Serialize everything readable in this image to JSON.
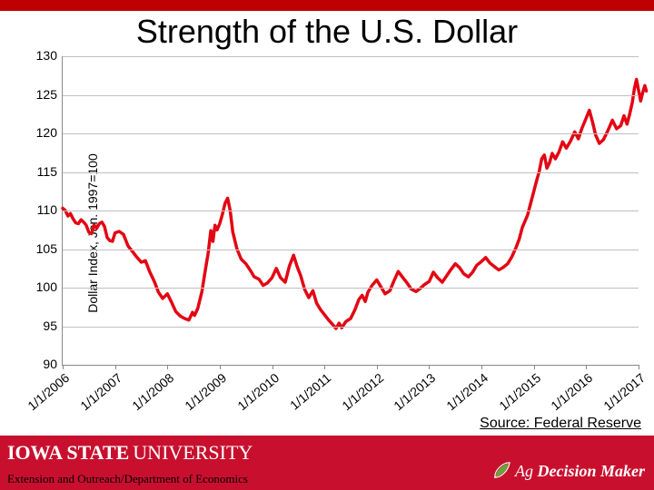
{
  "colors": {
    "accent_red": "#c00000",
    "bottom_bar": "#c8102e",
    "line_color": "#e30613",
    "grid_color": "#bfbfbf",
    "axis_color": "#808080",
    "title_color": "#000000",
    "isu_text": "#ffffff",
    "adm_icon_green": "#6aa339"
  },
  "title": "Strength of the U.S. Dollar",
  "chart": {
    "type": "line",
    "y_axis_title": "Dollar Index, Jan. 1997=100",
    "ylim": [
      90,
      130
    ],
    "ytick_step": 5,
    "y_ticks": [
      90,
      95,
      100,
      105,
      110,
      115,
      120,
      125,
      130
    ],
    "x_labels": [
      "1/1/2006",
      "1/1/2007",
      "1/1/2008",
      "1/1/2009",
      "1/1/2010",
      "1/1/2011",
      "1/1/2012",
      "1/1/2013",
      "1/1/2014",
      "1/1/2015",
      "1/1/2016",
      "1/1/2017"
    ],
    "x_label_rotation": -40,
    "line_width": 3.5,
    "label_fontsize": 14,
    "series": [
      {
        "x": 0.0,
        "y": 110.3
      },
      {
        "x": 0.05,
        "y": 110.0
      },
      {
        "x": 0.1,
        "y": 109.3
      },
      {
        "x": 0.15,
        "y": 109.6
      },
      {
        "x": 0.2,
        "y": 108.9
      },
      {
        "x": 0.25,
        "y": 108.4
      },
      {
        "x": 0.3,
        "y": 108.3
      },
      {
        "x": 0.35,
        "y": 108.8
      },
      {
        "x": 0.4,
        "y": 108.5
      },
      {
        "x": 0.45,
        "y": 108.1
      },
      {
        "x": 0.5,
        "y": 107.2
      },
      {
        "x": 0.55,
        "y": 107.0
      },
      {
        "x": 0.6,
        "y": 108.1
      },
      {
        "x": 0.65,
        "y": 107.7
      },
      {
        "x": 0.7,
        "y": 108.3
      },
      {
        "x": 0.75,
        "y": 108.5
      },
      {
        "x": 0.8,
        "y": 107.9
      },
      {
        "x": 0.85,
        "y": 106.5
      },
      {
        "x": 0.9,
        "y": 106.1
      },
      {
        "x": 0.95,
        "y": 106.0
      },
      {
        "x": 1.0,
        "y": 107.1
      },
      {
        "x": 1.08,
        "y": 107.3
      },
      {
        "x": 1.16,
        "y": 106.9
      },
      {
        "x": 1.25,
        "y": 105.4
      },
      {
        "x": 1.33,
        "y": 104.7
      },
      {
        "x": 1.41,
        "y": 104.0
      },
      {
        "x": 1.5,
        "y": 103.3
      },
      {
        "x": 1.58,
        "y": 103.5
      },
      {
        "x": 1.66,
        "y": 102.1
      },
      {
        "x": 1.75,
        "y": 100.8
      },
      {
        "x": 1.83,
        "y": 99.4
      },
      {
        "x": 1.91,
        "y": 98.6
      },
      {
        "x": 2.0,
        "y": 99.2
      },
      {
        "x": 2.08,
        "y": 98.1
      },
      {
        "x": 2.16,
        "y": 96.9
      },
      {
        "x": 2.25,
        "y": 96.3
      },
      {
        "x": 2.33,
        "y": 96.0
      },
      {
        "x": 2.41,
        "y": 95.8
      },
      {
        "x": 2.48,
        "y": 96.8
      },
      {
        "x": 2.52,
        "y": 96.4
      },
      {
        "x": 2.58,
        "y": 97.3
      },
      {
        "x": 2.66,
        "y": 99.5
      },
      {
        "x": 2.72,
        "y": 102.1
      },
      {
        "x": 2.78,
        "y": 104.5
      },
      {
        "x": 2.83,
        "y": 107.4
      },
      {
        "x": 2.87,
        "y": 106.0
      },
      {
        "x": 2.91,
        "y": 108.1
      },
      {
        "x": 2.95,
        "y": 107.5
      },
      {
        "x": 3.0,
        "y": 108.3
      },
      {
        "x": 3.05,
        "y": 109.5
      },
      {
        "x": 3.1,
        "y": 110.9
      },
      {
        "x": 3.15,
        "y": 111.6
      },
      {
        "x": 3.2,
        "y": 110.0
      },
      {
        "x": 3.25,
        "y": 107.2
      },
      {
        "x": 3.33,
        "y": 105.0
      },
      {
        "x": 3.41,
        "y": 103.7
      },
      {
        "x": 3.5,
        "y": 103.1
      },
      {
        "x": 3.58,
        "y": 102.3
      },
      {
        "x": 3.66,
        "y": 101.4
      },
      {
        "x": 3.75,
        "y": 101.1
      },
      {
        "x": 3.83,
        "y": 100.3
      },
      {
        "x": 3.91,
        "y": 100.6
      },
      {
        "x": 4.0,
        "y": 101.3
      },
      {
        "x": 4.08,
        "y": 102.5
      },
      {
        "x": 4.16,
        "y": 101.3
      },
      {
        "x": 4.25,
        "y": 100.7
      },
      {
        "x": 4.33,
        "y": 102.8
      },
      {
        "x": 4.41,
        "y": 104.2
      },
      {
        "x": 4.48,
        "y": 102.7
      },
      {
        "x": 4.55,
        "y": 101.5
      },
      {
        "x": 4.62,
        "y": 99.8
      },
      {
        "x": 4.7,
        "y": 98.7
      },
      {
        "x": 4.78,
        "y": 99.6
      },
      {
        "x": 4.85,
        "y": 98.0
      },
      {
        "x": 4.92,
        "y": 97.2
      },
      {
        "x": 5.0,
        "y": 96.5
      },
      {
        "x": 5.08,
        "y": 95.8
      },
      {
        "x": 5.16,
        "y": 95.2
      },
      {
        "x": 5.22,
        "y": 94.7
      },
      {
        "x": 5.28,
        "y": 95.4
      },
      {
        "x": 5.33,
        "y": 94.8
      },
      {
        "x": 5.41,
        "y": 95.6
      },
      {
        "x": 5.5,
        "y": 96.0
      },
      {
        "x": 5.58,
        "y": 97.1
      },
      {
        "x": 5.66,
        "y": 98.5
      },
      {
        "x": 5.72,
        "y": 99.0
      },
      {
        "x": 5.78,
        "y": 98.2
      },
      {
        "x": 5.83,
        "y": 99.4
      },
      {
        "x": 5.91,
        "y": 100.3
      },
      {
        "x": 6.0,
        "y": 101.0
      },
      {
        "x": 6.08,
        "y": 100.1
      },
      {
        "x": 6.16,
        "y": 99.2
      },
      {
        "x": 6.25,
        "y": 99.6
      },
      {
        "x": 6.33,
        "y": 100.9
      },
      {
        "x": 6.41,
        "y": 102.1
      },
      {
        "x": 6.5,
        "y": 101.3
      },
      {
        "x": 6.58,
        "y": 100.6
      },
      {
        "x": 6.66,
        "y": 99.8
      },
      {
        "x": 6.75,
        "y": 99.5
      },
      {
        "x": 6.83,
        "y": 99.9
      },
      {
        "x": 6.91,
        "y": 100.4
      },
      {
        "x": 7.0,
        "y": 100.8
      },
      {
        "x": 7.08,
        "y": 102.0
      },
      {
        "x": 7.16,
        "y": 101.3
      },
      {
        "x": 7.25,
        "y": 100.7
      },
      {
        "x": 7.33,
        "y": 101.5
      },
      {
        "x": 7.41,
        "y": 102.3
      },
      {
        "x": 7.5,
        "y": 103.1
      },
      {
        "x": 7.58,
        "y": 102.6
      },
      {
        "x": 7.66,
        "y": 101.8
      },
      {
        "x": 7.75,
        "y": 101.4
      },
      {
        "x": 7.83,
        "y": 102.0
      },
      {
        "x": 7.91,
        "y": 102.9
      },
      {
        "x": 8.0,
        "y": 103.4
      },
      {
        "x": 8.08,
        "y": 103.9
      },
      {
        "x": 8.16,
        "y": 103.2
      },
      {
        "x": 8.25,
        "y": 102.7
      },
      {
        "x": 8.33,
        "y": 102.3
      },
      {
        "x": 8.41,
        "y": 102.6
      },
      {
        "x": 8.5,
        "y": 103.1
      },
      {
        "x": 8.58,
        "y": 104.0
      },
      {
        "x": 8.66,
        "y": 105.2
      },
      {
        "x": 8.72,
        "y": 106.3
      },
      {
        "x": 8.78,
        "y": 107.8
      },
      {
        "x": 8.83,
        "y": 108.6
      },
      {
        "x": 8.88,
        "y": 109.4
      },
      {
        "x": 8.93,
        "y": 110.7
      },
      {
        "x": 9.0,
        "y": 112.5
      },
      {
        "x": 9.05,
        "y": 113.8
      },
      {
        "x": 9.1,
        "y": 115.0
      },
      {
        "x": 9.15,
        "y": 116.7
      },
      {
        "x": 9.2,
        "y": 117.2
      },
      {
        "x": 9.25,
        "y": 115.5
      },
      {
        "x": 9.3,
        "y": 116.2
      },
      {
        "x": 9.35,
        "y": 117.4
      },
      {
        "x": 9.41,
        "y": 116.7
      },
      {
        "x": 9.48,
        "y": 117.6
      },
      {
        "x": 9.55,
        "y": 118.9
      },
      {
        "x": 9.62,
        "y": 118.1
      },
      {
        "x": 9.7,
        "y": 119.0
      },
      {
        "x": 9.78,
        "y": 120.2
      },
      {
        "x": 9.85,
        "y": 119.3
      },
      {
        "x": 9.92,
        "y": 120.7
      },
      {
        "x": 10.0,
        "y": 122.0
      },
      {
        "x": 10.06,
        "y": 123.0
      },
      {
        "x": 10.12,
        "y": 121.5
      },
      {
        "x": 10.18,
        "y": 119.8
      },
      {
        "x": 10.25,
        "y": 118.7
      },
      {
        "x": 10.33,
        "y": 119.2
      },
      {
        "x": 10.41,
        "y": 120.3
      },
      {
        "x": 10.5,
        "y": 121.7
      },
      {
        "x": 10.58,
        "y": 120.6
      },
      {
        "x": 10.66,
        "y": 121.0
      },
      {
        "x": 10.72,
        "y": 122.3
      },
      {
        "x": 10.78,
        "y": 121.2
      },
      {
        "x": 10.83,
        "y": 122.5
      },
      {
        "x": 10.88,
        "y": 124.0
      },
      {
        "x": 10.92,
        "y": 125.8
      },
      {
        "x": 10.96,
        "y": 127.0
      },
      {
        "x": 11.0,
        "y": 125.6
      },
      {
        "x": 11.04,
        "y": 124.2
      },
      {
        "x": 11.08,
        "y": 125.3
      },
      {
        "x": 11.12,
        "y": 126.2
      },
      {
        "x": 11.15,
        "y": 125.5
      }
    ]
  },
  "source_text": "Source: Federal Reserve",
  "footer": {
    "isu_iowa": "IOWA STATE",
    "isu_univ": "UNIVERSITY",
    "dept": "Extension and Outreach/Department of Economics",
    "adm_ag": "Ag ",
    "adm_dm": "Decision Maker"
  }
}
